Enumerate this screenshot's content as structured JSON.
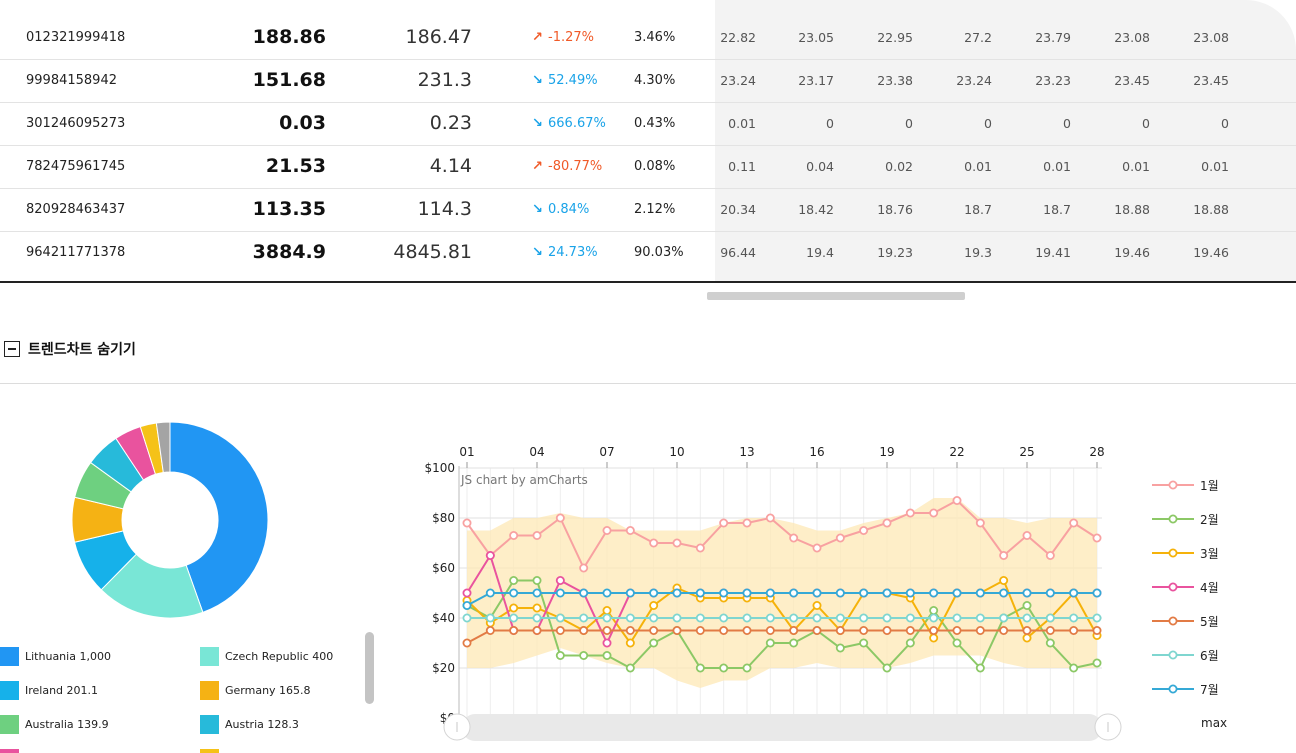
{
  "table": {
    "rows": [
      {
        "id": "012321999418",
        "current": "188.86",
        "previous": "186.47",
        "change": "-1.27%",
        "direction": "up",
        "share": "3.46%",
        "months": [
          "22.82",
          "23.05",
          "22.95",
          "27.2",
          "23.79",
          "23.08",
          "23.08"
        ]
      },
      {
        "id": "99984158942",
        "current": "151.68",
        "previous": "231.3",
        "change": "52.49%",
        "direction": "down",
        "share": "4.30%",
        "months": [
          "23.24",
          "23.17",
          "23.38",
          "23.24",
          "23.23",
          "23.45",
          "23.45"
        ]
      },
      {
        "id": "301246095273",
        "current": "0.03",
        "previous": "0.23",
        "change": "666.67%",
        "direction": "down",
        "share": "0.43%",
        "months": [
          "0.01",
          "0",
          "0",
          "0",
          "0",
          "0",
          "0"
        ]
      },
      {
        "id": "782475961745",
        "current": "21.53",
        "previous": "4.14",
        "change": "-80.77%",
        "direction": "up",
        "share": "0.08%",
        "months": [
          "0.11",
          "0.04",
          "0.02",
          "0.01",
          "0.01",
          "0.01",
          "0.01"
        ]
      },
      {
        "id": "820928463437",
        "current": "113.35",
        "previous": "114.3",
        "change": "0.84%",
        "direction": "down",
        "share": "2.12%",
        "months": [
          "20.34",
          "18.42",
          "18.76",
          "18.7",
          "18.7",
          "18.88",
          "18.88"
        ]
      },
      {
        "id": "964211771378",
        "current": "3884.9",
        "previous": "4845.81",
        "change": "24.73%",
        "direction": "down",
        "share": "90.03%",
        "months": [
          "96.44",
          "19.4",
          "19.23",
          "19.3",
          "19.41",
          "19.46",
          "19.46"
        ]
      }
    ]
  },
  "trend_toggle": {
    "label": "트렌드차트 숨기기"
  },
  "colors": {
    "accent_up": "#f05a28",
    "accent_down": "#1aa3e8"
  },
  "chart_data": [
    {
      "type": "pie",
      "donut": true,
      "slices": [
        {
          "name": "Lithuania",
          "label": "Lithuania 1,000",
          "value": 1000,
          "color": "#2196f3"
        },
        {
          "name": "Czech Republic",
          "label": "Czech Republic 400",
          "value": 400,
          "color": "#79e6d6"
        },
        {
          "name": "Ireland",
          "label": "Ireland 201.1",
          "value": 201.1,
          "color": "#16b1ea"
        },
        {
          "name": "Germany",
          "label": "Germany 165.8",
          "value": 165.8,
          "color": "#f5b214"
        },
        {
          "name": "Australia",
          "label": "Australia 139.9",
          "value": 139.9,
          "color": "#6ed080"
        },
        {
          "name": "Austria",
          "label": "Austria 128.3",
          "value": 128.3,
          "color": "#27bada"
        },
        {
          "name": "",
          "label": "",
          "value": 99,
          "color": "#e9539e"
        },
        {
          "name": "",
          "label": "",
          "value": 60,
          "color": "#f5c218"
        },
        {
          "name": "",
          "label": "",
          "value": 50,
          "color": "#a4a4a4"
        }
      ],
      "legend_placement": "bottom"
    },
    {
      "type": "line",
      "credit": "JS chart by amCharts",
      "x_tick_labels": [
        "01",
        "04",
        "07",
        "10",
        "13",
        "16",
        "19",
        "22",
        "25",
        "28"
      ],
      "x_tick_positions": [
        1,
        4,
        7,
        10,
        13,
        16,
        19,
        22,
        25,
        28
      ],
      "x": [
        1,
        2,
        3,
        4,
        5,
        6,
        7,
        8,
        9,
        10,
        11,
        12,
        13,
        14,
        15,
        16,
        17,
        18,
        19,
        20,
        21,
        22,
        23,
        24,
        25,
        26,
        27,
        28
      ],
      "ylim": [
        0,
        100
      ],
      "y_tick_labels": [
        "$0",
        "$20",
        "$40",
        "$60",
        "$80",
        "$100"
      ],
      "y_tick_values": [
        0,
        20,
        40,
        60,
        80,
        100
      ],
      "grid": true,
      "legend_placement": "right",
      "legend_extra": "max",
      "band": {
        "upper": [
          75,
          75,
          80,
          80,
          82,
          80,
          80,
          75,
          75,
          75,
          75,
          78,
          80,
          80,
          78,
          75,
          75,
          78,
          80,
          82,
          88,
          88,
          80,
          80,
          78,
          80,
          80,
          80
        ],
        "lower": [
          20,
          20,
          22,
          25,
          28,
          25,
          22,
          20,
          20,
          15,
          12,
          15,
          15,
          20,
          20,
          22,
          20,
          20,
          20,
          22,
          25,
          25,
          25,
          22,
          20,
          20,
          20,
          20
        ],
        "color": "#fde8b5"
      },
      "series": [
        {
          "name": "1월",
          "color": "#f8a1a1",
          "values": [
            78,
            65,
            73,
            73,
            80,
            60,
            75,
            75,
            70,
            70,
            68,
            78,
            78,
            80,
            72,
            68,
            72,
            75,
            78,
            82,
            82,
            87,
            78,
            65,
            73,
            65,
            78,
            72
          ]
        },
        {
          "name": "2월",
          "color": "#8cc866",
          "values": [
            45,
            40,
            55,
            55,
            25,
            25,
            25,
            20,
            30,
            35,
            20,
            20,
            20,
            30,
            30,
            35,
            28,
            30,
            20,
            30,
            43,
            30,
            20,
            40,
            45,
            30,
            20,
            22
          ]
        },
        {
          "name": "3월",
          "color": "#f5b20a",
          "values": [
            47,
            38,
            44,
            44,
            40,
            35,
            43,
            30,
            45,
            52,
            48,
            48,
            48,
            48,
            35,
            45,
            35,
            50,
            50,
            48,
            32,
            50,
            50,
            55,
            32,
            40,
            50,
            33
          ]
        },
        {
          "name": "4월",
          "color": "#e9539e",
          "values": [
            50,
            65,
            35,
            35,
            55,
            50,
            30,
            50,
            50,
            50,
            50,
            50,
            50,
            50,
            50,
            50,
            50,
            50,
            50,
            50,
            50,
            50,
            50,
            50,
            50,
            50,
            50,
            50
          ]
        },
        {
          "name": "5월",
          "color": "#e27b45",
          "values": [
            30,
            35,
            35,
            35,
            35,
            35,
            35,
            35,
            35,
            35,
            35,
            35,
            35,
            35,
            35,
            35,
            35,
            35,
            35,
            35,
            35,
            35,
            35,
            35,
            35,
            35,
            35,
            35
          ]
        },
        {
          "name": "6월",
          "color": "#7fd6d0",
          "values": [
            40,
            40,
            40,
            40,
            40,
            40,
            40,
            40,
            40,
            40,
            40,
            40,
            40,
            40,
            40,
            40,
            40,
            40,
            40,
            40,
            40,
            40,
            40,
            40,
            40,
            40,
            40,
            40
          ]
        },
        {
          "name": "7월",
          "color": "#35a9d6",
          "values": [
            45,
            50,
            50,
            50,
            50,
            50,
            50,
            50,
            50,
            50,
            50,
            50,
            50,
            50,
            50,
            50,
            50,
            50,
            50,
            50,
            50,
            50,
            50,
            50,
            50,
            50,
            50,
            50
          ]
        }
      ]
    }
  ]
}
